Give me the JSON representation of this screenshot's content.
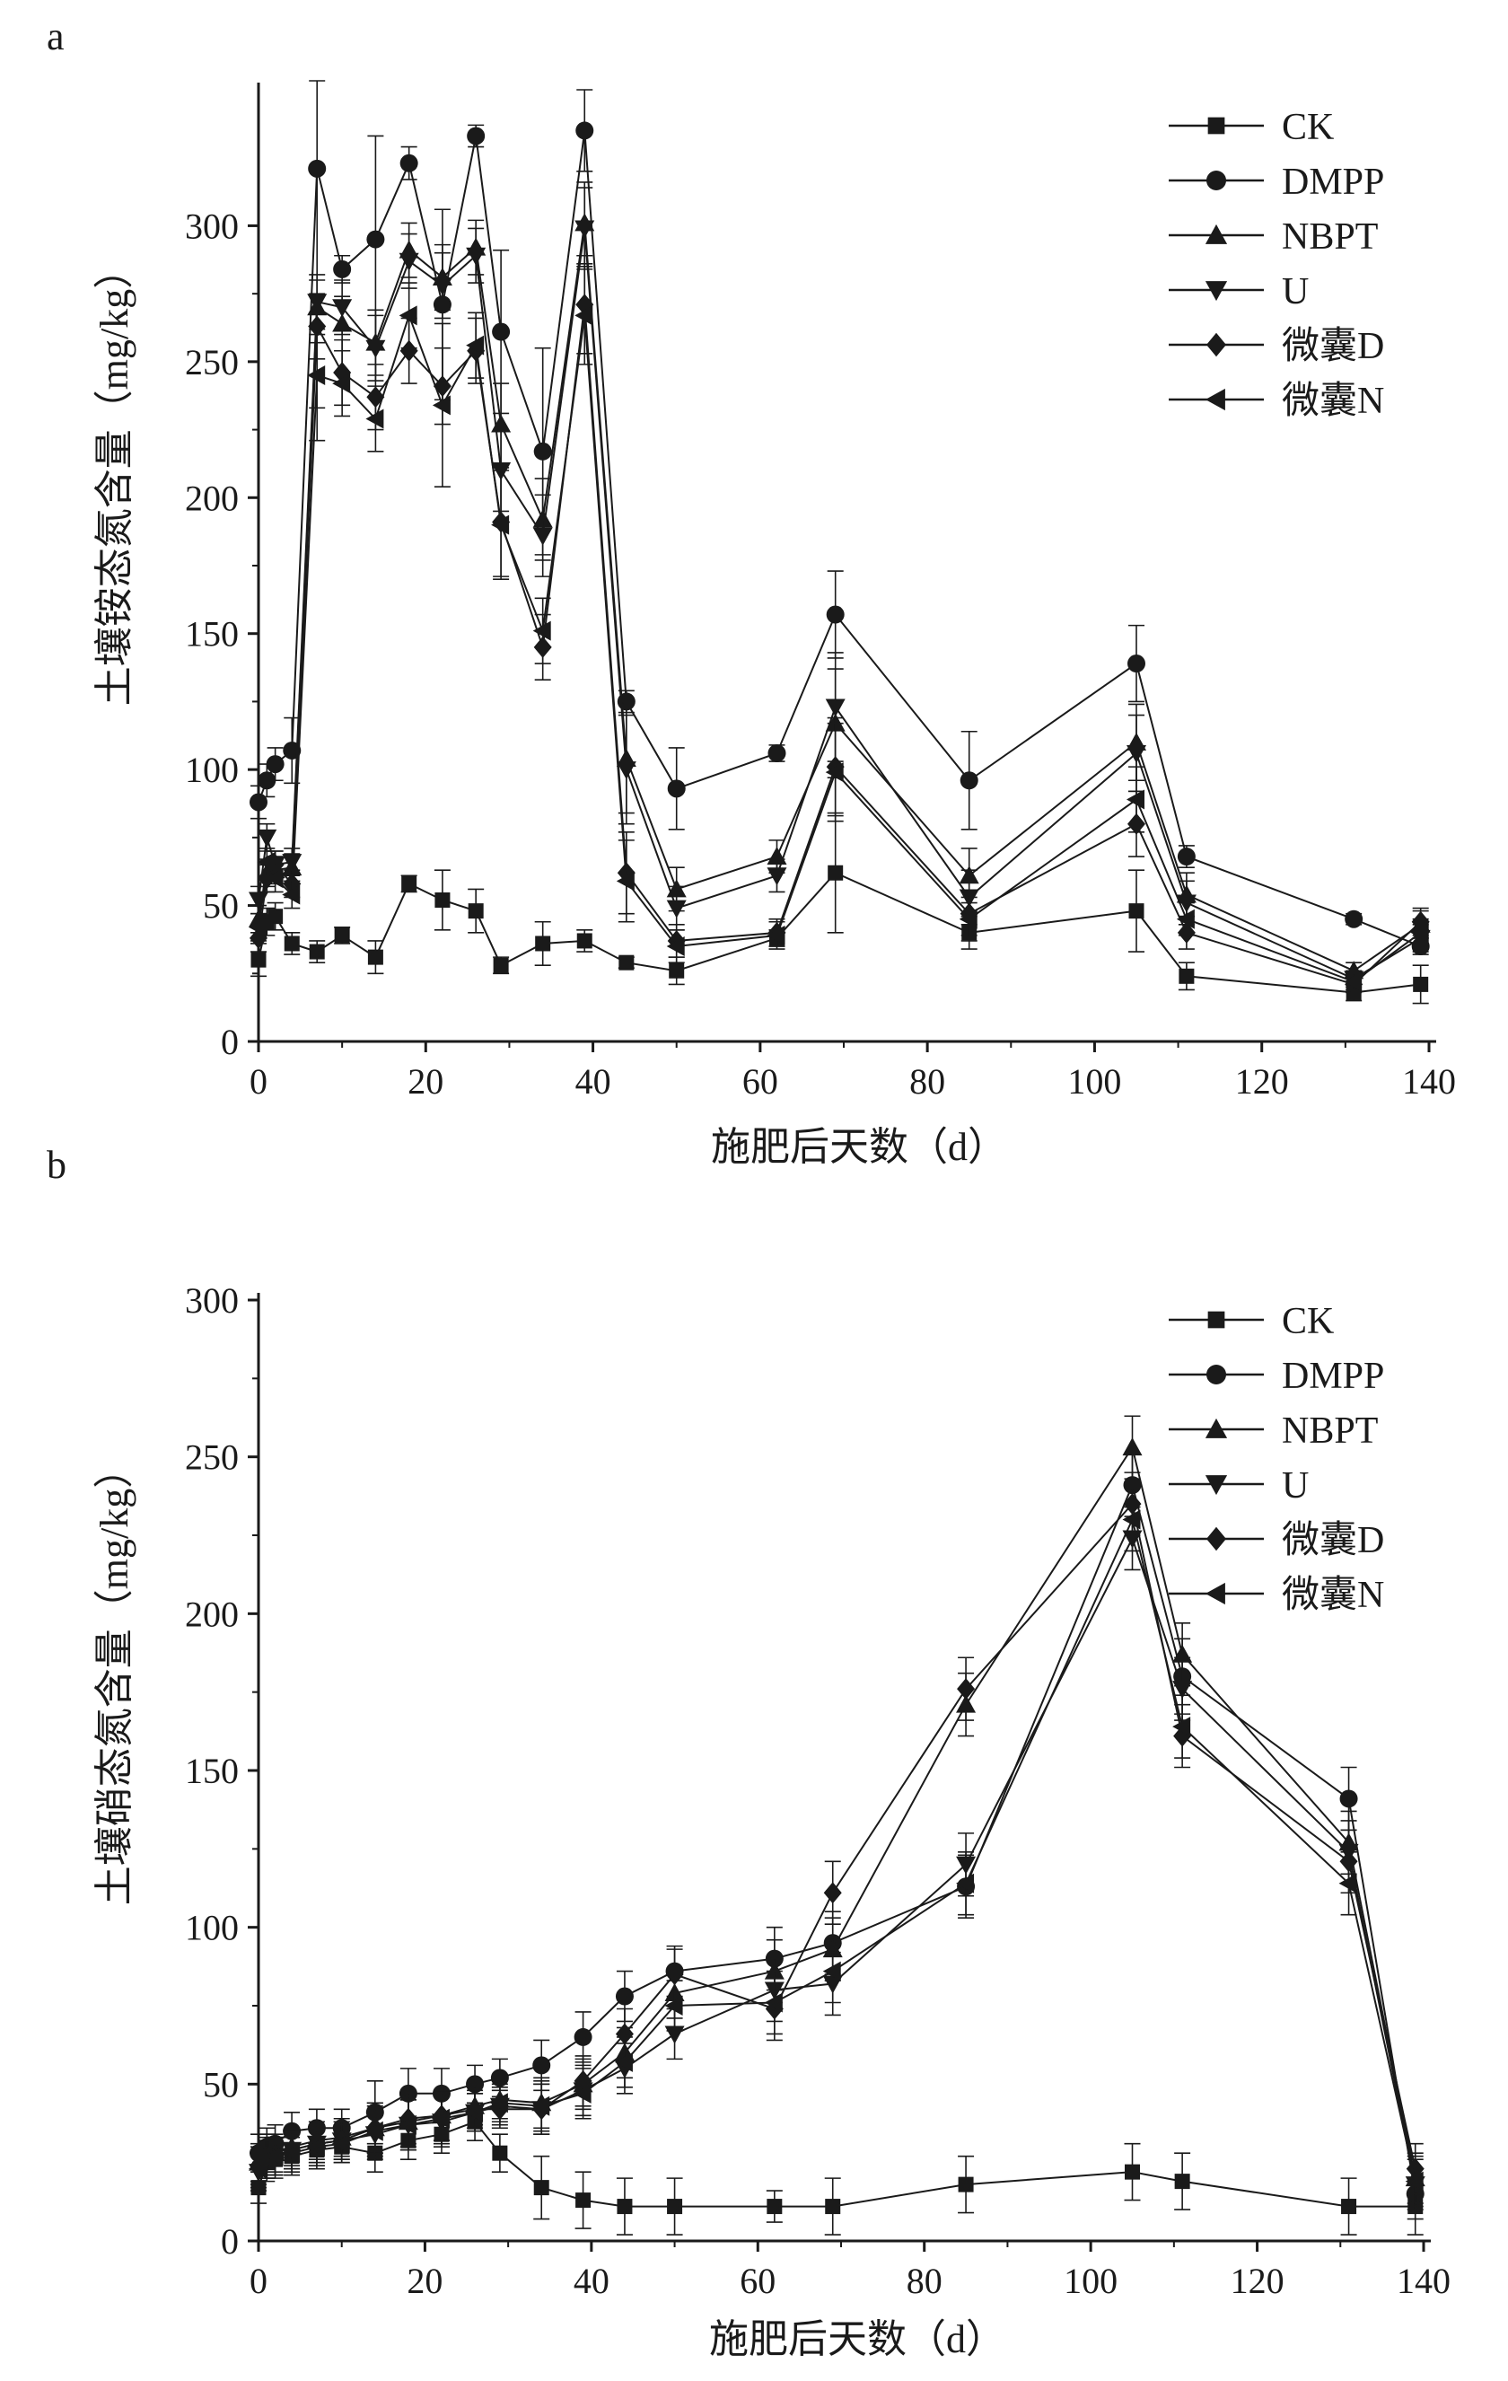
{
  "chart_data": [
    {
      "panel_label": "a",
      "type": "line",
      "title": "",
      "xlabel": "施肥后天数（d）",
      "ylabel": "土壤铵态氮含量（mg/kg）",
      "xlim": [
        0,
        140
      ],
      "ylim": [
        0,
        350
      ],
      "xticks": [
        0,
        20,
        40,
        60,
        80,
        100,
        120,
        140
      ],
      "yticks": [
        0,
        50,
        100,
        150,
        200,
        250,
        300
      ],
      "grid": false,
      "legend_position": "top-right",
      "x": [
        0,
        1,
        2,
        4,
        7,
        10,
        14,
        18,
        22,
        26,
        29,
        34,
        39,
        44,
        50,
        62,
        69,
        85,
        105,
        111,
        131,
        139
      ],
      "series": [
        {
          "name": "CK",
          "marker": "square",
          "values": [
            30,
            44,
            46,
            36,
            33,
            39,
            31,
            58,
            52,
            48,
            28,
            36,
            37,
            29,
            26,
            38,
            62,
            40,
            48,
            24,
            18,
            21
          ],
          "errors": [
            6,
            5,
            5,
            4,
            4,
            3,
            6,
            3,
            11,
            8,
            3,
            8,
            4,
            2,
            5,
            3,
            22,
            6,
            15,
            5,
            3,
            7
          ]
        },
        {
          "name": "DMPP",
          "marker": "circle",
          "values": [
            88,
            96,
            102,
            107,
            321,
            284,
            295,
            323,
            271,
            333,
            261,
            217,
            335,
            125,
            93,
            106,
            157,
            96,
            139,
            68,
            45,
            35
          ],
          "errors": [
            6,
            6,
            6,
            12,
            100,
            5,
            38,
            6,
            35,
            4,
            30,
            38,
            15,
            4,
            15,
            3,
            16,
            18,
            14,
            4,
            2,
            3
          ]
        },
        {
          "name": "NBPT",
          "marker": "triangle-up",
          "values": [
            45,
            62,
            63,
            64,
            270,
            264,
            257,
            291,
            281,
            292,
            227,
            192,
            301,
            104,
            56,
            68,
            117,
            61,
            110,
            54,
            26,
            43
          ],
          "errors": [
            5,
            5,
            5,
            5,
            10,
            10,
            12,
            10,
            12,
            10,
            15,
            15,
            15,
            20,
            8,
            6,
            20,
            10,
            14,
            8,
            3,
            5
          ]
        },
        {
          "name": "U",
          "marker": "triangle-down",
          "values": [
            52,
            75,
            65,
            66,
            272,
            270,
            255,
            287,
            278,
            289,
            210,
            186,
            299,
            100,
            49,
            61,
            123,
            53,
            106,
            51,
            23,
            38
          ],
          "errors": [
            5,
            5,
            5,
            5,
            10,
            10,
            12,
            10,
            12,
            10,
            15,
            15,
            15,
            20,
            8,
            6,
            20,
            10,
            14,
            8,
            3,
            5
          ]
        },
        {
          "name": "微囊D",
          "marker": "diamond",
          "values": [
            38,
            60,
            65,
            58,
            263,
            246,
            237,
            254,
            241,
            254,
            191,
            145,
            271,
            62,
            37,
            40,
            101,
            47,
            80,
            40,
            21,
            44
          ],
          "errors": [
            5,
            5,
            5,
            5,
            12,
            12,
            12,
            12,
            14,
            12,
            20,
            12,
            18,
            15,
            6,
            5,
            18,
            8,
            12,
            6,
            3,
            5
          ]
        },
        {
          "name": "微囊N",
          "marker": "triangle-left",
          "values": [
            42,
            66,
            60,
            54,
            245,
            242,
            229,
            267,
            234,
            256,
            190,
            151,
            267,
            59,
            35,
            39,
            99,
            45,
            89,
            45,
            22,
            40
          ],
          "errors": [
            5,
            5,
            5,
            5,
            12,
            12,
            12,
            12,
            30,
            12,
            20,
            12,
            18,
            15,
            6,
            5,
            18,
            8,
            12,
            6,
            3,
            5
          ]
        }
      ]
    },
    {
      "panel_label": "b",
      "type": "line",
      "title": "",
      "xlabel": "施肥后天数（d）",
      "ylabel": "土壤硝态氮含量（mg/kg）",
      "xlim": [
        0,
        140
      ],
      "ylim": [
        0,
        300
      ],
      "xticks": [
        0,
        20,
        40,
        60,
        80,
        100,
        120,
        140
      ],
      "yticks": [
        0,
        50,
        100,
        150,
        200,
        250,
        300
      ],
      "grid": false,
      "legend_position": "top-right",
      "x": [
        0,
        1,
        2,
        4,
        7,
        10,
        14,
        18,
        22,
        26,
        29,
        34,
        39,
        44,
        50,
        62,
        69,
        85,
        105,
        111,
        131,
        139
      ],
      "series": [
        {
          "name": "CK",
          "marker": "square",
          "values": [
            17,
            25,
            26,
            27,
            29,
            30,
            28,
            32,
            34,
            38,
            28,
            17,
            13,
            11,
            11,
            11,
            11,
            18,
            22,
            19,
            11,
            11
          ],
          "errors": [
            5,
            6,
            6,
            6,
            6,
            5,
            6,
            6,
            6,
            6,
            6,
            10,
            9,
            9,
            9,
            5,
            9,
            9,
            9,
            9,
            9,
            9
          ]
        },
        {
          "name": "DMPP",
          "marker": "circle",
          "values": [
            28,
            30,
            31,
            35,
            36,
            36,
            41,
            47,
            47,
            50,
            52,
            56,
            65,
            78,
            86,
            90,
            95,
            113,
            241,
            180,
            141,
            15
          ],
          "errors": [
            6,
            6,
            6,
            6,
            6,
            6,
            10,
            8,
            8,
            6,
            6,
            8,
            8,
            8,
            8,
            10,
            10,
            10,
            10,
            12,
            10,
            8
          ]
        },
        {
          "name": "NBPT",
          "marker": "triangle-up",
          "values": [
            25,
            28,
            28,
            30,
            32,
            33,
            36,
            38,
            40,
            43,
            45,
            44,
            50,
            60,
            79,
            86,
            93,
            171,
            253,
            187,
            127,
            20
          ],
          "errors": [
            6,
            6,
            6,
            6,
            6,
            6,
            8,
            8,
            8,
            6,
            6,
            8,
            8,
            8,
            8,
            10,
            10,
            10,
            10,
            10,
            10,
            8
          ]
        },
        {
          "name": "U",
          "marker": "triangle-down",
          "values": [
            22,
            26,
            27,
            29,
            31,
            32,
            34,
            37,
            38,
            41,
            43,
            42,
            48,
            55,
            66,
            80,
            82,
            120,
            224,
            176,
            124,
            18
          ],
          "errors": [
            6,
            6,
            6,
            6,
            6,
            6,
            8,
            8,
            8,
            6,
            6,
            8,
            8,
            8,
            8,
            10,
            10,
            10,
            10,
            10,
            10,
            8
          ]
        },
        {
          "name": "微囊D",
          "marker": "diamond",
          "values": [
            24,
            27,
            27,
            29,
            31,
            32,
            36,
            39,
            40,
            42,
            42,
            42,
            51,
            66,
            85,
            74,
            111,
            176,
            235,
            161,
            121,
            23
          ],
          "errors": [
            6,
            6,
            6,
            6,
            6,
            6,
            8,
            8,
            8,
            6,
            6,
            8,
            8,
            8,
            8,
            10,
            10,
            10,
            10,
            10,
            10,
            8
          ]
        },
        {
          "name": "微囊N",
          "marker": "triangle-left",
          "values": [
            23,
            26,
            27,
            28,
            30,
            31,
            35,
            37,
            39,
            41,
            44,
            43,
            47,
            57,
            75,
            76,
            86,
            114,
            230,
            164,
            114,
            19
          ],
          "errors": [
            6,
            6,
            6,
            6,
            6,
            6,
            8,
            8,
            8,
            6,
            6,
            8,
            8,
            8,
            8,
            10,
            10,
            10,
            10,
            10,
            10,
            8
          ]
        }
      ]
    }
  ]
}
